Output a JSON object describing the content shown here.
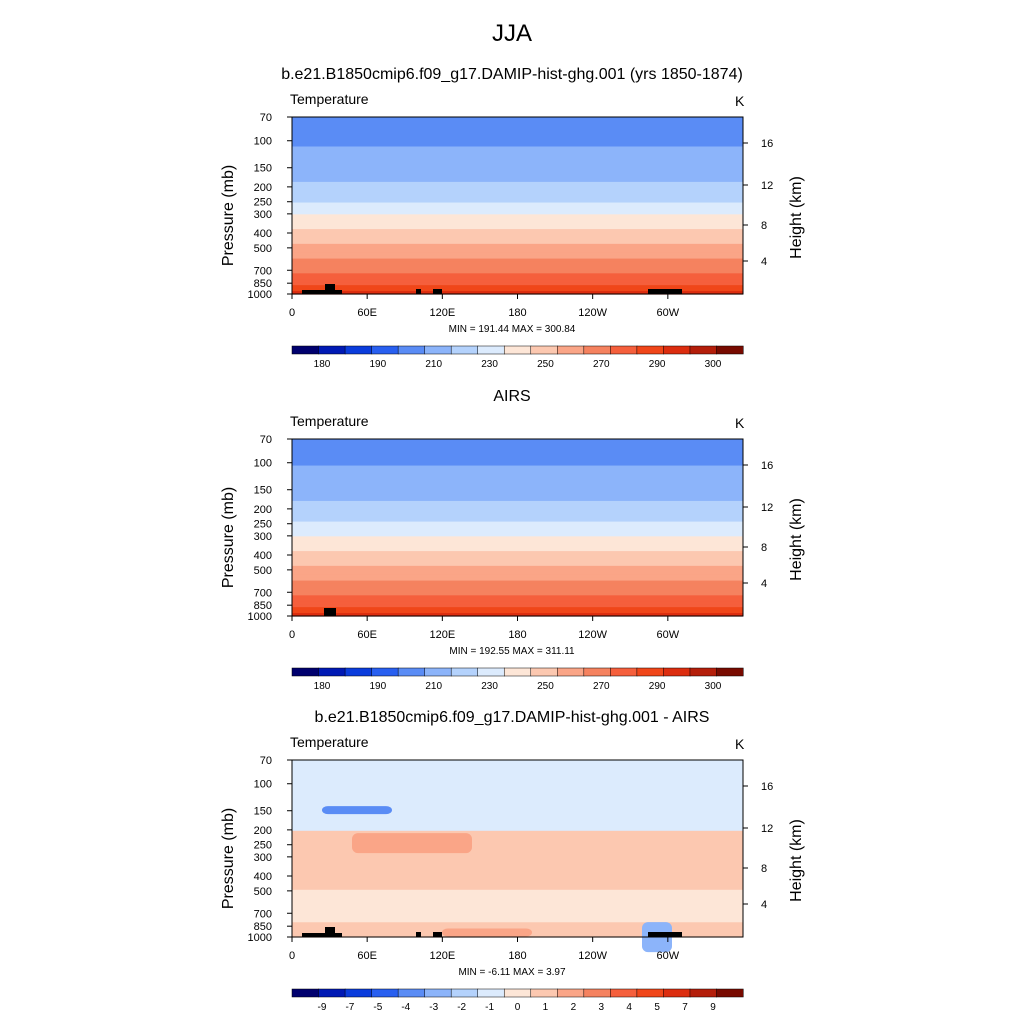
{
  "page": {
    "title": "JJA"
  },
  "colors": {
    "abs_fill": [
      "#00006e",
      "#0019b4",
      "#0a3cdc",
      "#285ff0",
      "#5a8cf5",
      "#8cb4fa",
      "#b4d2fc",
      "#dcebfd",
      "#fde6d7",
      "#fcc8b0",
      "#faa587",
      "#f5825f",
      "#f55f3c",
      "#f04619",
      "#dc2d0f",
      "#b41e0a",
      "#780a00"
    ],
    "diff_fill": [
      "#00006e",
      "#0019b4",
      "#0a3cdc",
      "#285ff0",
      "#5a8cf5",
      "#8cb4fa",
      "#b4d2fc",
      "#dcebfd",
      "#fde6d7",
      "#fcc8b0",
      "#faa587",
      "#f5825f",
      "#f55f3c",
      "#f04619",
      "#dc2d0f",
      "#b41e0a",
      "#780a00"
    ],
    "terrain": "#000000"
  },
  "chart_data": [
    {
      "type": "heatmap",
      "title": "b.e21.B1850cmip6.f09_g17.DAMIP-hist-ghg.001 (yrs 1850-1874)",
      "left_label": "Temperature",
      "right_label": "K",
      "ylabel": "Pressure (mb)",
      "ylabel_right": "Height (km)",
      "x_ticks": [
        "0",
        "60E",
        "120E",
        "180",
        "120W",
        "60W"
      ],
      "y_ticks": [
        "70",
        "100",
        "150",
        "200",
        "250",
        "300",
        "400",
        "500",
        "700",
        "850",
        "1000"
      ],
      "y_ticks_right": [
        "4",
        "8",
        "12",
        "16"
      ],
      "stats": "MIN = 191.44  MAX = 300.84",
      "colorbar_labels": [
        "180",
        "190",
        "210",
        "230",
        "250",
        "270",
        "290",
        "300"
      ],
      "levels_note": "temperature by pressure level",
      "profile": [
        [
          70,
          207
        ],
        [
          100,
          209
        ],
        [
          150,
          215
        ],
        [
          200,
          222
        ],
        [
          250,
          230
        ],
        [
          300,
          239
        ],
        [
          400,
          252
        ],
        [
          500,
          262
        ],
        [
          700,
          277
        ],
        [
          850,
          287
        ],
        [
          1000,
          297
        ]
      ]
    },
    {
      "type": "heatmap",
      "title": "AIRS",
      "left_label": "Temperature",
      "right_label": "K",
      "ylabel": "Pressure (mb)",
      "ylabel_right": "Height (km)",
      "x_ticks": [
        "0",
        "60E",
        "120E",
        "180",
        "120W",
        "60W"
      ],
      "y_ticks": [
        "70",
        "100",
        "150",
        "200",
        "250",
        "300",
        "400",
        "500",
        "700",
        "850",
        "1000"
      ],
      "y_ticks_right": [
        "4",
        "8",
        "12",
        "16"
      ],
      "stats": "MIN = 192.55  MAX = 311.11",
      "colorbar_labels": [
        "180",
        "190",
        "210",
        "230",
        "250",
        "270",
        "290",
        "300"
      ],
      "profile": [
        [
          70,
          208
        ],
        [
          100,
          209
        ],
        [
          150,
          216
        ],
        [
          200,
          223
        ],
        [
          250,
          231
        ],
        [
          300,
          240
        ],
        [
          400,
          253
        ],
        [
          500,
          263
        ],
        [
          700,
          278
        ],
        [
          850,
          288
        ],
        [
          1000,
          298
        ]
      ]
    },
    {
      "type": "heatmap",
      "title": "b.e21.B1850cmip6.f09_g17.DAMIP-hist-ghg.001 - AIRS",
      "left_label": "Temperature",
      "right_label": "K",
      "ylabel": "Pressure (mb)",
      "ylabel_right": "Height (km)",
      "x_ticks": [
        "0",
        "60E",
        "120E",
        "180",
        "120W",
        "60W"
      ],
      "y_ticks": [
        "70",
        "100",
        "150",
        "200",
        "250",
        "300",
        "400",
        "500",
        "700",
        "850",
        "1000"
      ],
      "y_ticks_right": [
        "4",
        "8",
        "12",
        "16"
      ],
      "stats": "MIN =  -6.11  MAX =   3.97",
      "colorbar_labels": [
        "-9",
        "-7",
        "-5",
        "-4",
        "-3",
        "-2",
        "-1",
        "0",
        "1",
        "2",
        "3",
        "4",
        "5",
        "7",
        "9"
      ]
    }
  ]
}
